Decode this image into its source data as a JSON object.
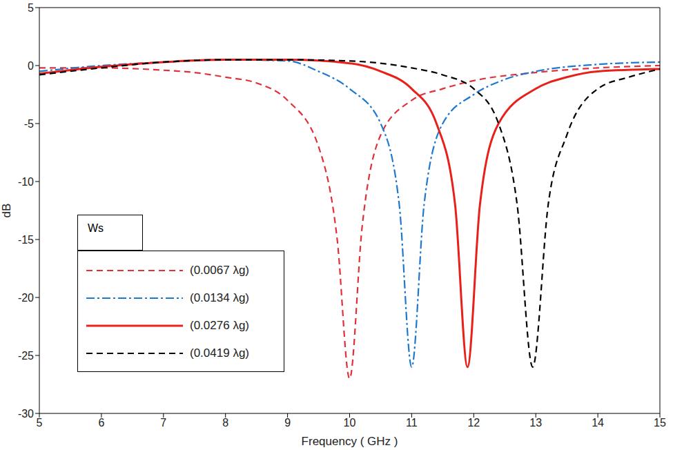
{
  "chart_data": {
    "type": "line",
    "x_label": "Frequency  ( GHz )",
    "y_label": "dB",
    "legend_title": "Ws",
    "xlim": [
      5,
      15
    ],
    "xticks": [
      5,
      6,
      7,
      8,
      9,
      10,
      11,
      12,
      13,
      14,
      15
    ],
    "ylim": [
      -30,
      5
    ],
    "yticks": [
      -30,
      -25,
      -20,
      -15,
      -10,
      -5,
      0,
      5
    ],
    "grid": false,
    "legend": "lower left",
    "series": [
      {
        "name": "(0.0067 λg)",
        "color": "#e0303a",
        "line_style": "dashed",
        "x": [
          5,
          6,
          7,
          7.5,
          8,
          8.5,
          9,
          9.5,
          9.8,
          10,
          10.2,
          10.5,
          11,
          11.5,
          12,
          13,
          14,
          15
        ],
        "values": [
          -0.2,
          -0.2,
          -0.4,
          -0.6,
          -1,
          -1.5,
          -3,
          -7,
          -15,
          -27,
          -14,
          -6,
          -3,
          -2,
          -1.3,
          -0.6,
          -0.2,
          0
        ]
      },
      {
        "name": "(0.0134 λg)",
        "color": "#1f78d0",
        "line_style": "dashdot",
        "x": [
          5,
          6,
          7,
          8,
          9,
          9.5,
          10,
          10.5,
          10.8,
          11,
          11.2,
          11.5,
          12,
          12.5,
          13,
          14,
          15
        ],
        "values": [
          -0.5,
          0,
          0.3,
          0.5,
          0.4,
          -0.5,
          -2,
          -5,
          -12,
          -26,
          -12,
          -5,
          -2.5,
          -1.2,
          -0.5,
          0.1,
          0.3
        ]
      },
      {
        "name": "(0.0276 λg)",
        "color": "#e8201a",
        "line_style": "solid",
        "x": [
          5,
          6,
          7,
          8,
          9,
          10,
          10.5,
          11,
          11.4,
          11.7,
          11.9,
          12.1,
          12.4,
          13,
          13.5,
          14,
          15
        ],
        "values": [
          -0.7,
          -0.1,
          0.3,
          0.5,
          0.5,
          0.2,
          -0.5,
          -2,
          -5,
          -12,
          -26,
          -12,
          -5,
          -2,
          -1,
          -0.5,
          -0.3
        ]
      },
      {
        "name": "(0.0419 λg)",
        "color": "#000000",
        "line_style": "dashed",
        "x": [
          5,
          6,
          7,
          8,
          9,
          10,
          11,
          11.5,
          12,
          12.4,
          12.7,
          12.95,
          13.2,
          13.5,
          14,
          14.5,
          15
        ],
        "values": [
          -0.8,
          -0.2,
          0.3,
          0.5,
          0.5,
          0.4,
          -0.2,
          -0.8,
          -2,
          -5,
          -12,
          -26,
          -12,
          -6,
          -2,
          -1,
          -0.3
        ]
      }
    ]
  }
}
